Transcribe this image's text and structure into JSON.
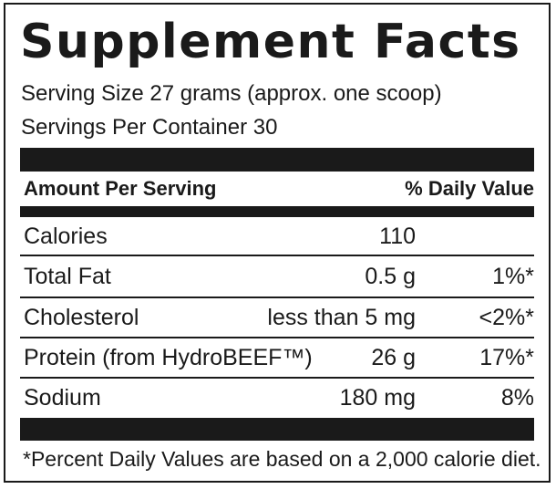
{
  "title": "Supplement Facts",
  "serving_size": "Serving Size 27 grams (approx. one scoop)",
  "servings_per_container": "Servings Per Container 30",
  "header": {
    "amount_label": "Amount Per Serving",
    "daily_value_label": "% Daily Value"
  },
  "rows": [
    {
      "name": "Calories",
      "amount": "110",
      "dv": ""
    },
    {
      "name": "Total Fat",
      "amount": "0.5 g",
      "dv": "1%*"
    },
    {
      "name": "Cholesterol",
      "amount": "less than 5 mg",
      "dv": "<2%*"
    },
    {
      "name": "Protein (from HydroBEEF™)",
      "amount": "26 g",
      "dv": "17%*"
    },
    {
      "name": "Sodium",
      "amount": "180 mg",
      "dv": "8%"
    }
  ],
  "footnote": "*Percent Daily Values are based on a 2,000 calorie diet."
}
